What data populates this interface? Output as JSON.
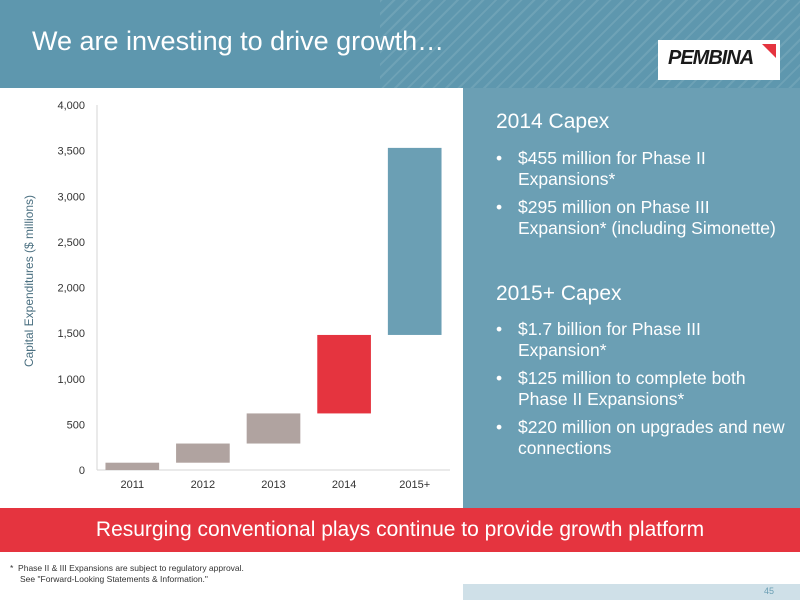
{
  "header": {
    "title": "We are investing to drive growth…",
    "logo_text": "PEMBINA"
  },
  "chart_data": {
    "type": "bar",
    "subtype": "waterfall",
    "categories": [
      "2011",
      "2012",
      "2013",
      "2014",
      "2015+"
    ],
    "segments": [
      {
        "start": 0,
        "end": 80,
        "color": "#b0a3a0"
      },
      {
        "start": 80,
        "end": 290,
        "color": "#b0a3a0"
      },
      {
        "start": 290,
        "end": 620,
        "color": "#b0a3a0"
      },
      {
        "start": 620,
        "end": 1480,
        "color": "#e5343f"
      },
      {
        "start": 1480,
        "end": 3530,
        "color": "#6b9fb4"
      }
    ],
    "ylabel": "Capital Expenditures ($ millions)",
    "xlabel": "",
    "ylim": [
      0,
      4000
    ],
    "yticks": [
      0,
      500,
      1000,
      1500,
      2000,
      2500,
      3000,
      3500,
      4000
    ],
    "ytick_labels": [
      "0",
      "500",
      "1,000",
      "1,500",
      "2,000",
      "2,500",
      "3,000",
      "3,500",
      "4,000"
    ]
  },
  "panel": {
    "heading1": "2014 Capex",
    "bullets1": [
      "$455 million for Phase II Expansions*",
      "$295 million on Phase III Expansion* (including Simonette)"
    ],
    "heading2": "2015+ Capex",
    "bullets2": [
      "$1.7 billion for Phase III Expansion*",
      "$125 million to complete both Phase II Expansions*",
      "$220 million on upgrades and new connections"
    ]
  },
  "banner": {
    "text": "Resurging conventional plays continue to provide growth platform"
  },
  "footnote": {
    "mark": "*",
    "line1": "Phase II & III Expansions are subject to regulatory approval.",
    "line2": "See \"Forward-Looking Statements & Information.\""
  },
  "page_number": "45"
}
